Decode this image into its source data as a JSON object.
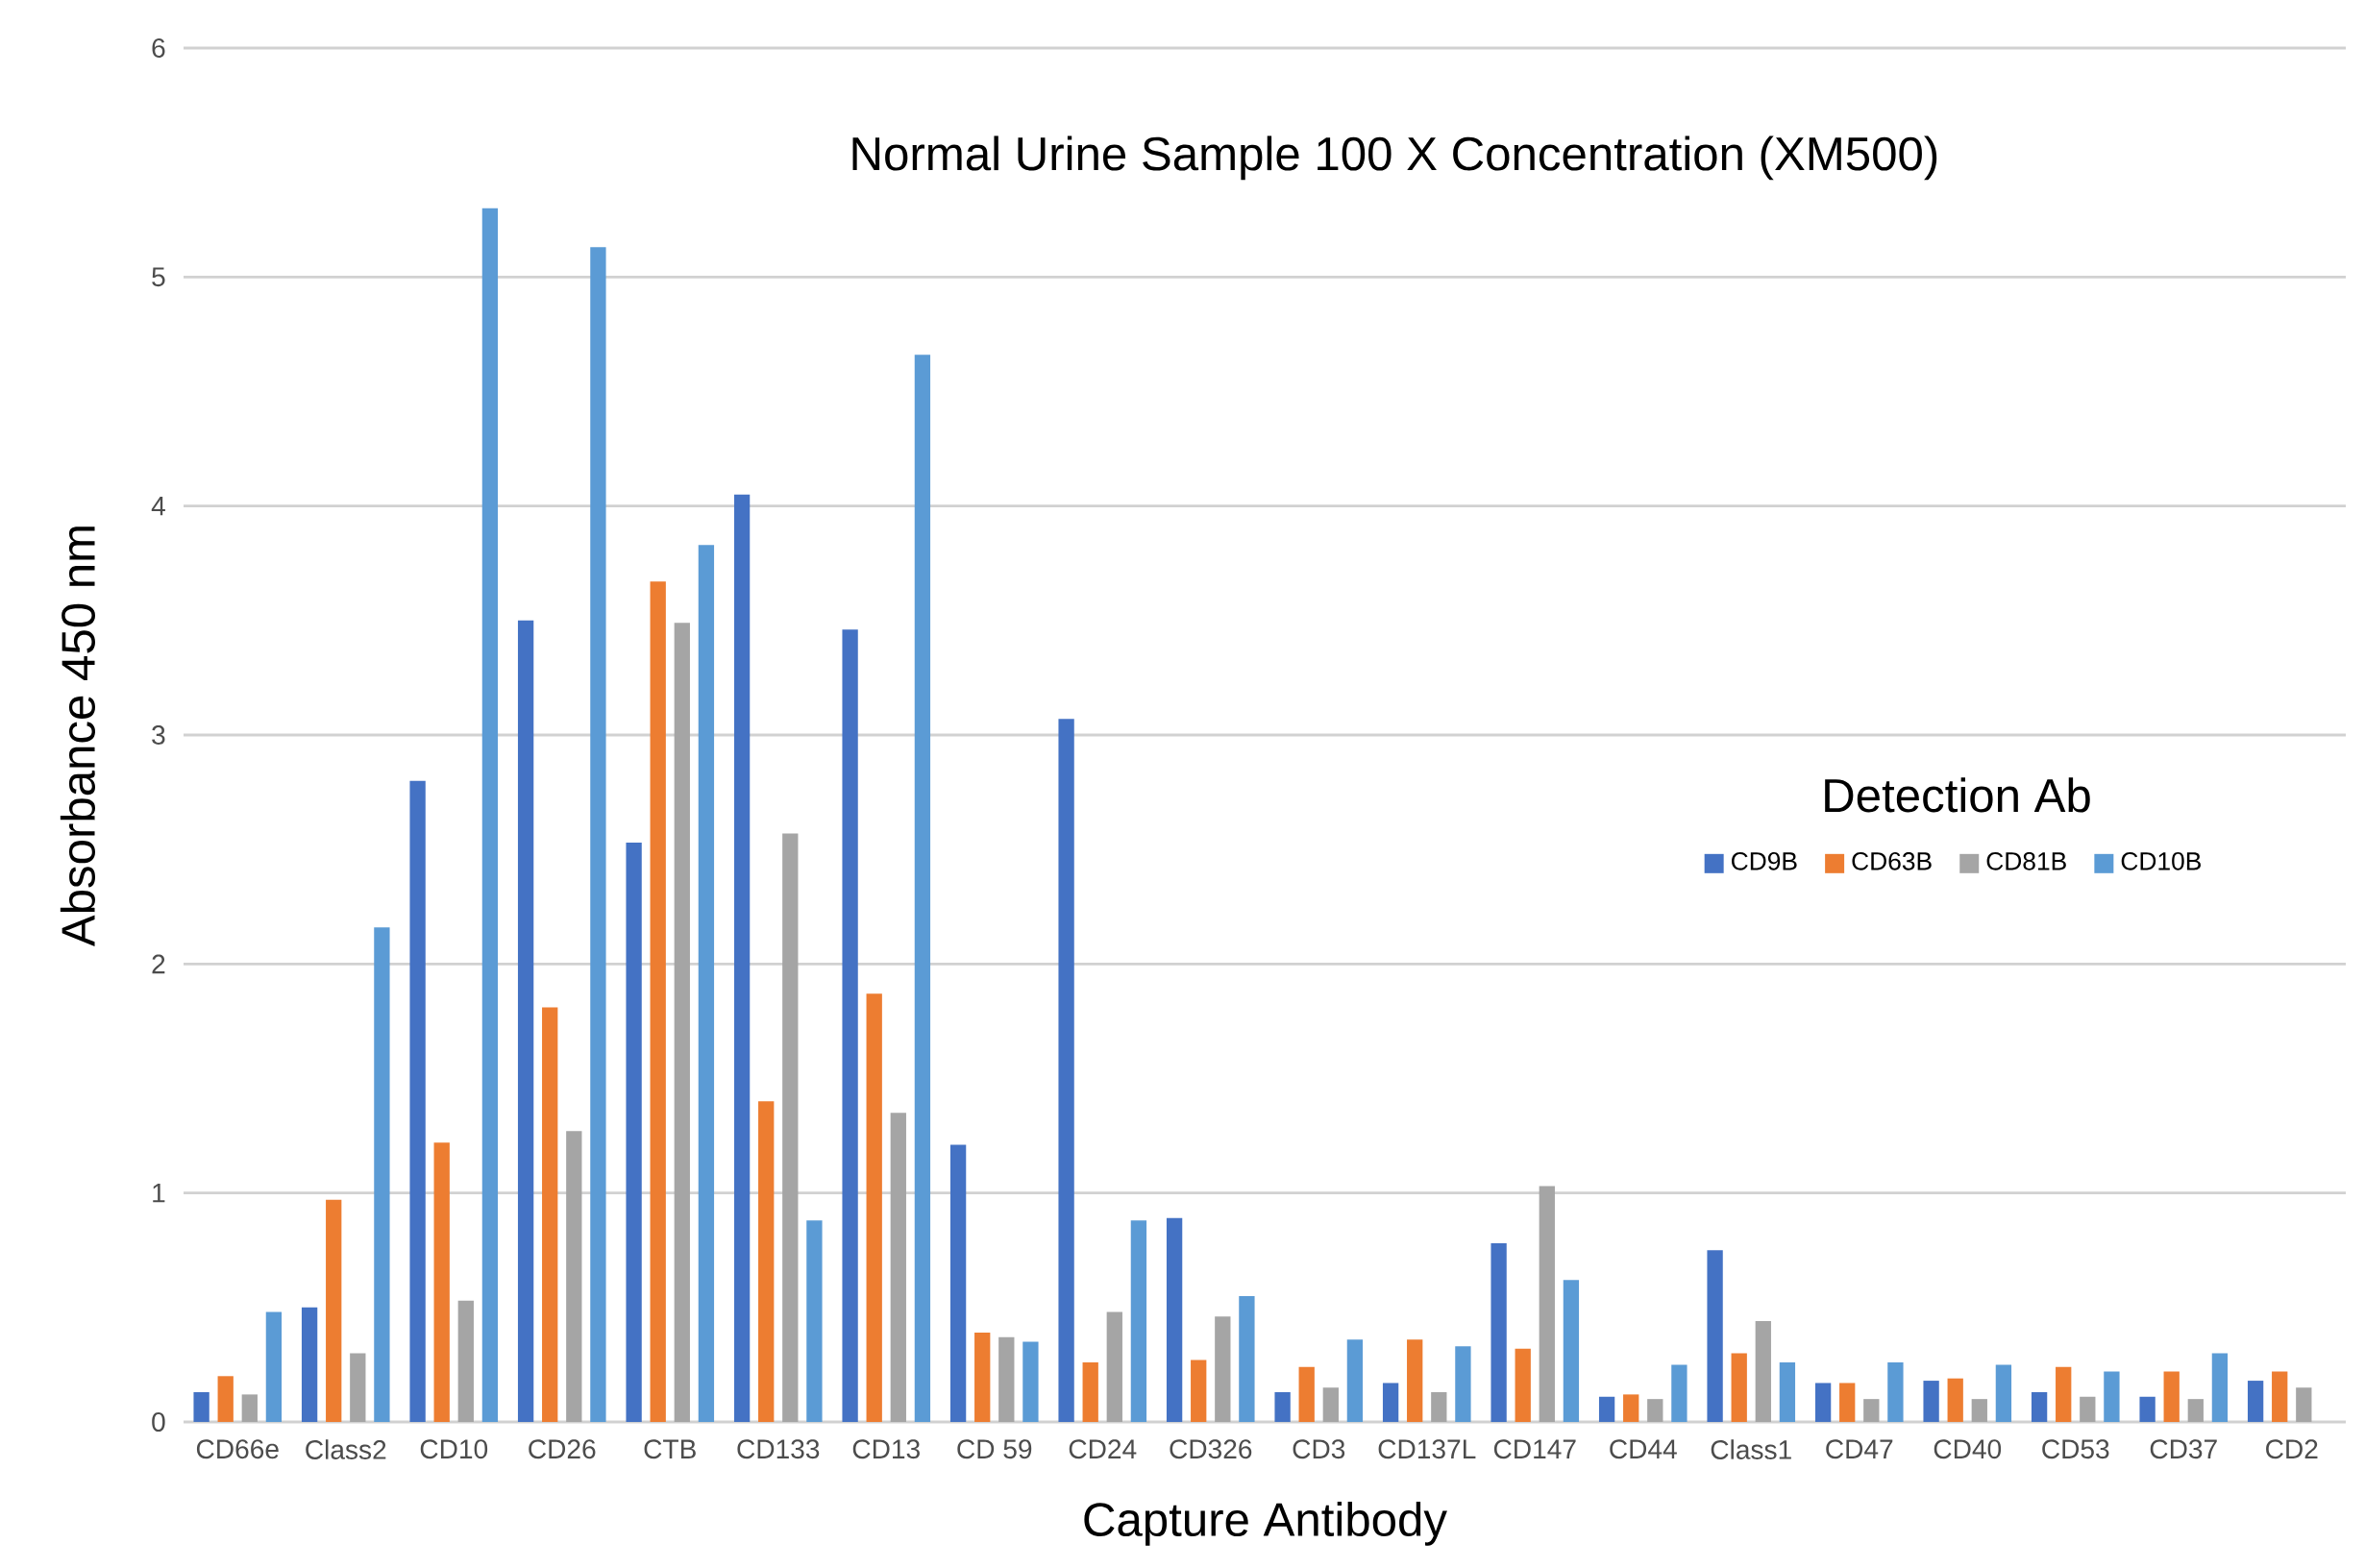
{
  "chart_data": {
    "type": "bar",
    "title": "Normal Urine Sample 100 X Concentration (XM500)",
    "xlabel": "Capture Antibody",
    "ylabel": "Absorbance 450 nm",
    "legend_title": "Detection Ab",
    "categories": [
      "CD66e",
      "Class2",
      "CD10",
      "CD26",
      "CTB",
      "CD133",
      "CD13",
      "CD 59",
      "CD24",
      "CD326",
      "CD3",
      "CD137L",
      "CD147",
      "CD44",
      "Class1",
      "CD47",
      "CD40",
      "CD53",
      "CD37",
      "CD2"
    ],
    "series": [
      {
        "name": "CD9B",
        "color": "#4472c4",
        "values": [
          0.13,
          0.5,
          2.8,
          3.5,
          2.53,
          4.05,
          3.46,
          1.21,
          3.07,
          0.89,
          0.13,
          0.17,
          0.78,
          0.11,
          0.75,
          0.17,
          0.18,
          0.13,
          0.11,
          0.18
        ]
      },
      {
        "name": "CD63B",
        "color": "#ed7d31",
        "values": [
          0.2,
          0.97,
          1.22,
          1.81,
          3.67,
          1.4,
          1.87,
          0.39,
          0.26,
          0.27,
          0.24,
          0.36,
          0.32,
          0.12,
          0.3,
          0.17,
          0.19,
          0.24,
          0.22,
          0.22
        ]
      },
      {
        "name": "CD81B",
        "color": "#a5a5a5",
        "values": [
          0.12,
          0.3,
          0.53,
          1.27,
          3.49,
          2.57,
          1.35,
          0.37,
          0.48,
          0.46,
          0.15,
          0.13,
          1.03,
          0.1,
          0.44,
          0.1,
          0.1,
          0.11,
          0.1,
          0.15
        ]
      },
      {
        "name": "CD10B",
        "color": "#5b9bd5",
        "values": [
          0.48,
          2.16,
          5.3,
          5.13,
          3.83,
          0.88,
          4.66,
          0.35,
          0.88,
          0.55,
          0.36,
          0.33,
          0.62,
          0.25,
          0.26,
          0.26,
          0.25,
          0.22,
          0.3,
          null
        ]
      }
    ],
    "ylim": [
      0,
      6
    ],
    "yticks": [
      0,
      1,
      2,
      3,
      4,
      5,
      6
    ],
    "grid": "y",
    "legend": "right"
  }
}
